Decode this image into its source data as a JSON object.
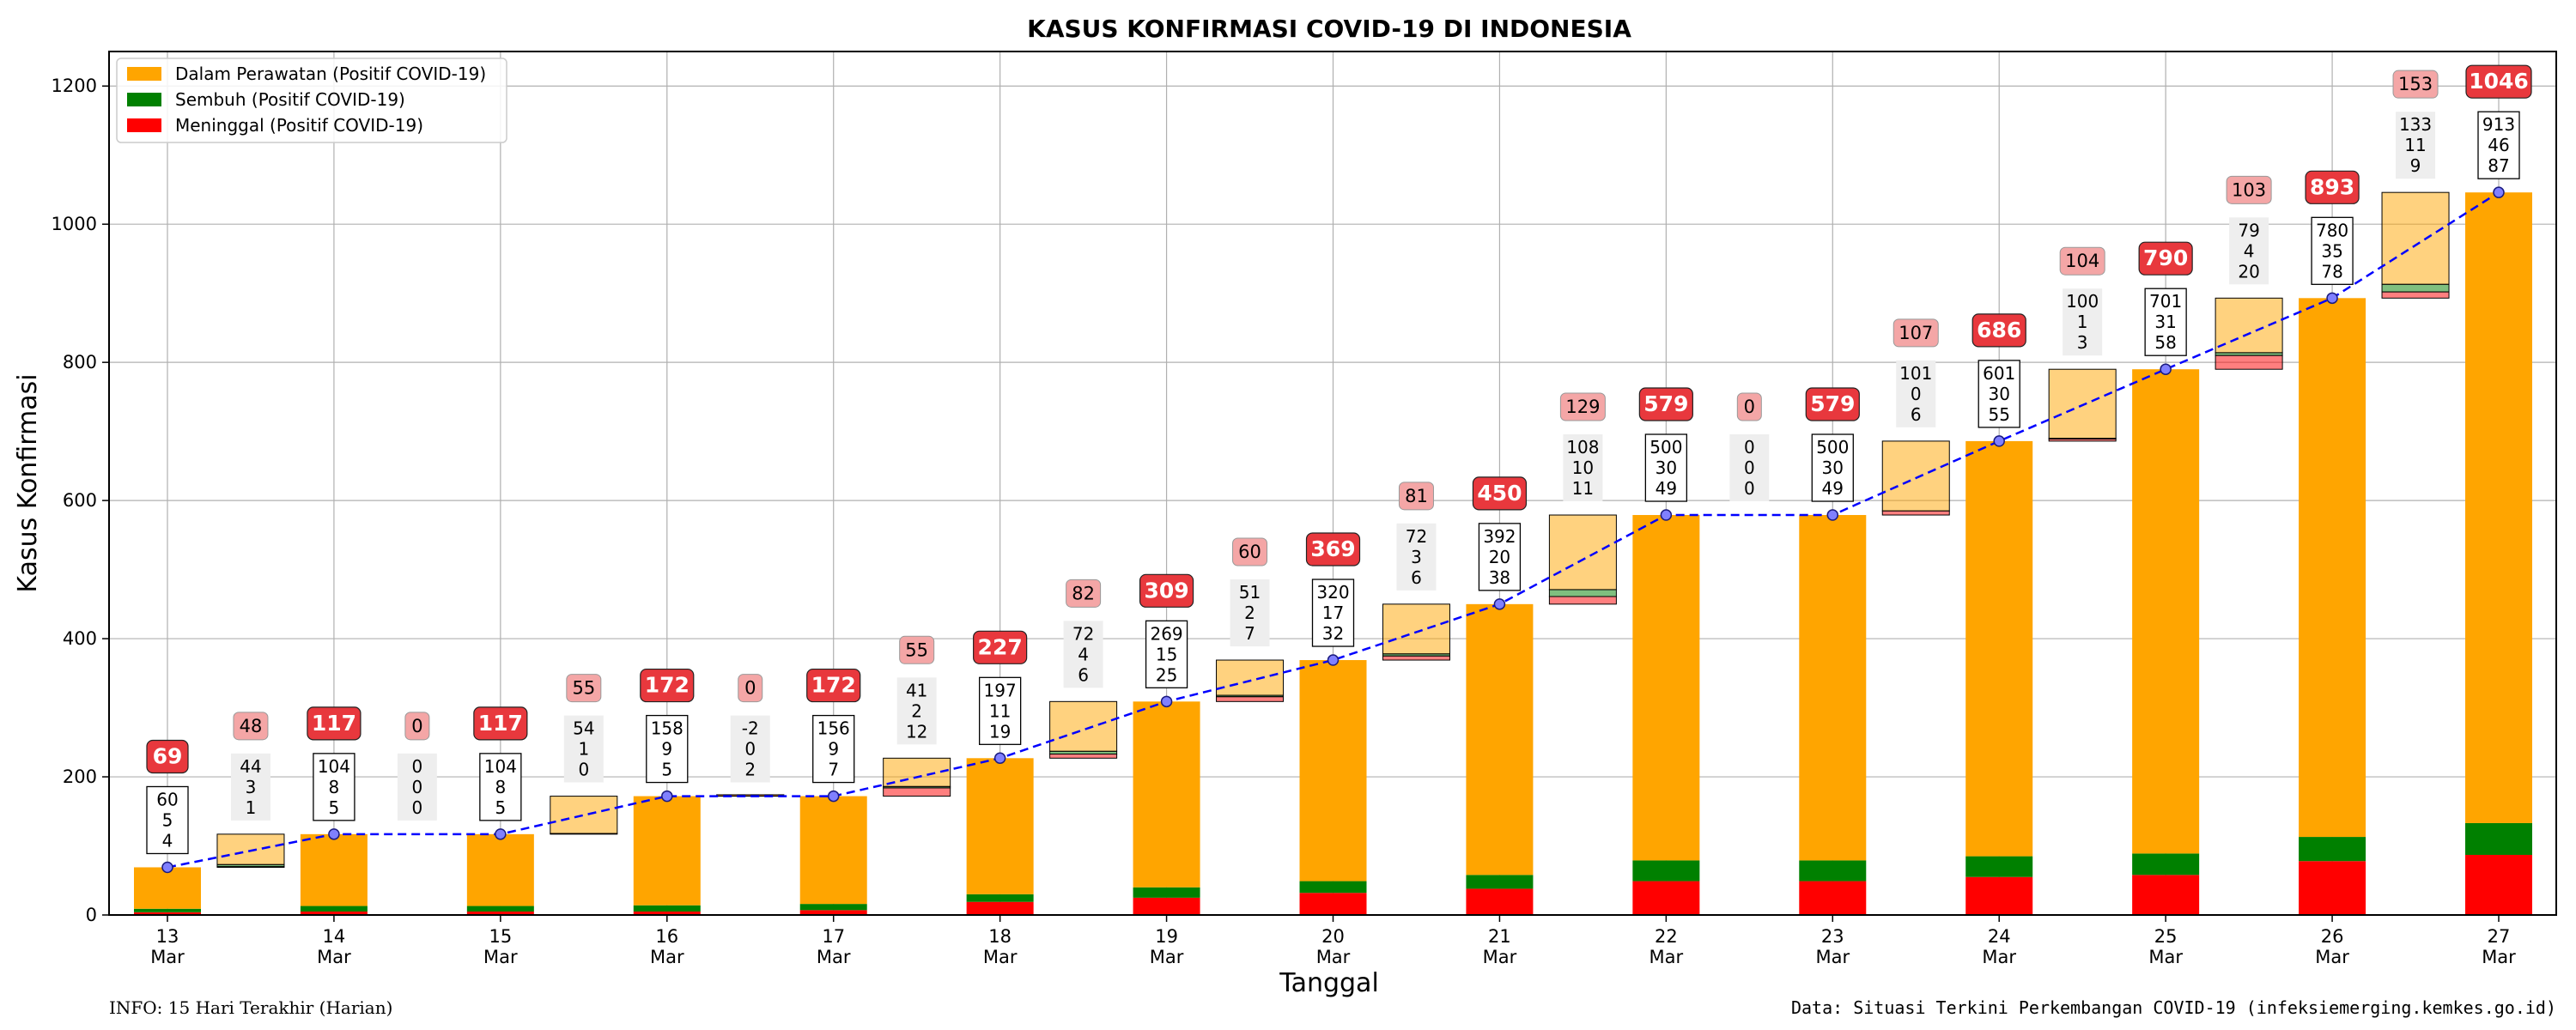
{
  "chart_data": {
    "type": "bar",
    "title": "KASUS KONFIRMASI COVID-19 DI INDONESIA",
    "xlabel": "Tanggal",
    "ylabel": "Kasus Konfirmasi",
    "ylim": [
      0,
      1250
    ],
    "yticks": [
      0,
      200,
      400,
      600,
      800,
      1000,
      1200
    ],
    "grid": true,
    "legend_position": "top-left",
    "legend": [
      {
        "label": "Dalam Perawatan (Positif COVID-19)",
        "color": "#ffa500"
      },
      {
        "label": "Sembuh (Positif COVID-19)",
        "color": "#008000"
      },
      {
        "label": "Meninggal (Positif COVID-19)",
        "color": "#ff0000"
      }
    ],
    "categories": [
      {
        "day": "13",
        "month": "Mar"
      },
      {
        "day": "14",
        "month": "Mar"
      },
      {
        "day": "15",
        "month": "Mar"
      },
      {
        "day": "16",
        "month": "Mar"
      },
      {
        "day": "17",
        "month": "Mar"
      },
      {
        "day": "18",
        "month": "Mar"
      },
      {
        "day": "19",
        "month": "Mar"
      },
      {
        "day": "20",
        "month": "Mar"
      },
      {
        "day": "21",
        "month": "Mar"
      },
      {
        "day": "22",
        "month": "Mar"
      },
      {
        "day": "23",
        "month": "Mar"
      },
      {
        "day": "24",
        "month": "Mar"
      },
      {
        "day": "25",
        "month": "Mar"
      },
      {
        "day": "26",
        "month": "Mar"
      },
      {
        "day": "27",
        "month": "Mar"
      }
    ],
    "series": [
      {
        "name": "Dalam Perawatan (Positif COVID-19)",
        "color": "#ffa500",
        "values": [
          60,
          104,
          104,
          158,
          156,
          197,
          269,
          320,
          392,
          500,
          500,
          601,
          701,
          780,
          913
        ]
      },
      {
        "name": "Sembuh (Positif COVID-19)",
        "color": "#008000",
        "values": [
          5,
          8,
          8,
          9,
          9,
          11,
          15,
          17,
          20,
          30,
          30,
          30,
          31,
          35,
          46
        ]
      },
      {
        "name": "Meninggal (Positif COVID-19)",
        "color": "#ff0000",
        "values": [
          4,
          5,
          5,
          5,
          7,
          19,
          25,
          32,
          38,
          49,
          49,
          55,
          58,
          78,
          87
        ]
      }
    ],
    "totals": [
      69,
      117,
      117,
      172,
      172,
      227,
      309,
      369,
      450,
      579,
      579,
      686,
      790,
      893,
      1046
    ],
    "daily_changes": [
      {
        "total": "48",
        "perawatan": "44",
        "sembuh": "3",
        "meninggal": "1"
      },
      {
        "total": "0",
        "perawatan": "0",
        "sembuh": "0",
        "meninggal": "0"
      },
      {
        "total": "55",
        "perawatan": "54",
        "sembuh": "1",
        "meninggal": "0"
      },
      {
        "total": "0",
        "perawatan": "-2",
        "sembuh": "0",
        "meninggal": "2"
      },
      {
        "total": "55",
        "perawatan": "41",
        "sembuh": "2",
        "meninggal": "12"
      },
      {
        "total": "82",
        "perawatan": "72",
        "sembuh": "4",
        "meninggal": "6"
      },
      {
        "total": "60",
        "perawatan": "51",
        "sembuh": "2",
        "meninggal": "7"
      },
      {
        "total": "81",
        "perawatan": "72",
        "sembuh": "3",
        "meninggal": "6"
      },
      {
        "total": "129",
        "perawatan": "108",
        "sembuh": "10",
        "meninggal": "11"
      },
      {
        "total": "0",
        "perawatan": "0",
        "sembuh": "0",
        "meninggal": "0"
      },
      {
        "total": "107",
        "perawatan": "101",
        "sembuh": "0",
        "meninggal": "6"
      },
      {
        "total": "104",
        "perawatan": "100",
        "sembuh": "1",
        "meninggal": "3"
      },
      {
        "total": "103",
        "perawatan": "79",
        "sembuh": "4",
        "meninggal": "20"
      },
      {
        "total": "153",
        "perawatan": "133",
        "sembuh": "11",
        "meninggal": "9"
      }
    ],
    "line": {
      "style": "dashed",
      "color": "#0000ff",
      "marker_color": "#8080ff",
      "values": [
        69,
        117,
        117,
        172,
        172,
        227,
        309,
        369,
        450,
        579,
        579,
        686,
        790,
        893,
        1046
      ]
    }
  },
  "footer": {
    "info": "INFO: 15 Hari Terakhir (Harian)",
    "source": "Data: Situasi Terkini Perkembangan COVID-19 (infeksiemerging.kemkes.go.id)"
  },
  "colors": {
    "perawatan": "#ffa500",
    "sembuh": "#008000",
    "meninggal": "#ff0000",
    "total_badge": "#e8383d",
    "delta_badge": "#f4a6a6",
    "line": "#0000ff"
  }
}
